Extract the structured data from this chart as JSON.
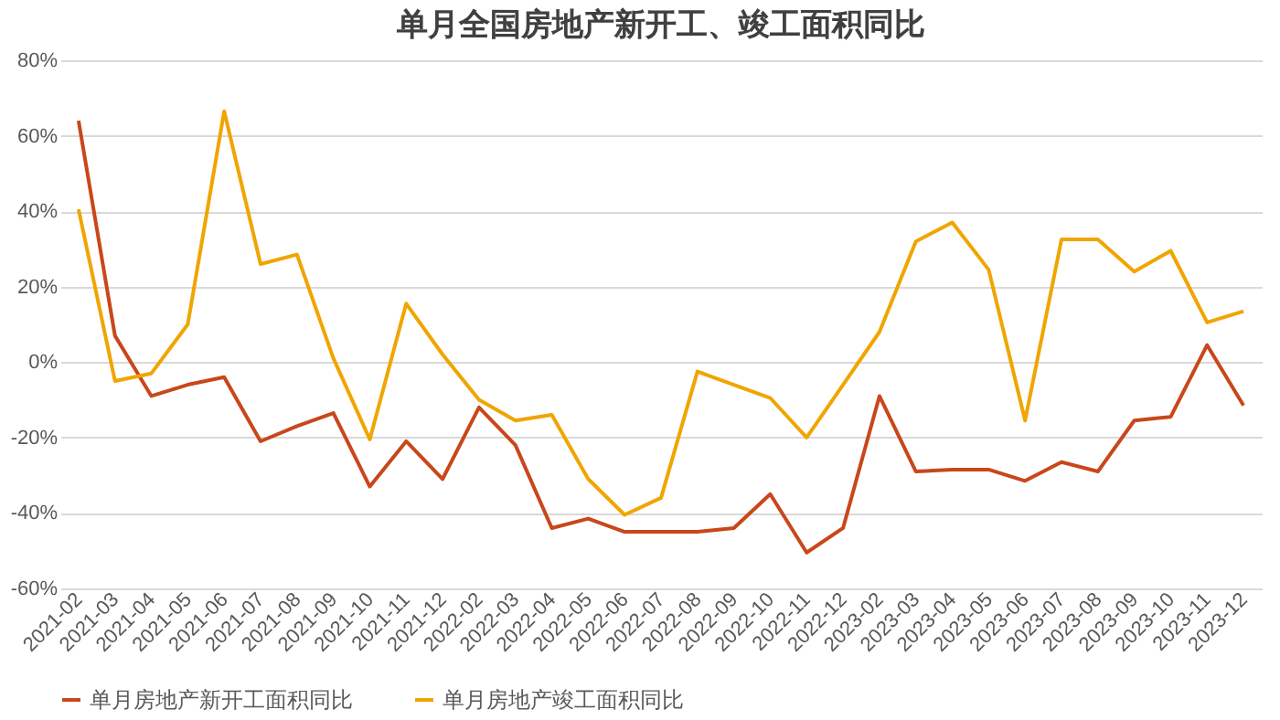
{
  "chart_data": {
    "type": "line",
    "title": "单月全国房地产新开工、竣工面积同比",
    "categories": [
      "2021-02",
      "2021-03",
      "2021-04",
      "2021-05",
      "2021-06",
      "2021-07",
      "2021-08",
      "2021-09",
      "2021-10",
      "2021-11",
      "2021-12",
      "2022-02",
      "2022-03",
      "2022-04",
      "2022-05",
      "2022-06",
      "2022-07",
      "2022-08",
      "2022-09",
      "2022-10",
      "2022-11",
      "2022-12",
      "2023-02",
      "2023-03",
      "2023-04",
      "2023-05",
      "2023-06",
      "2023-07",
      "2023-08",
      "2023-09",
      "2023-10",
      "2023-11",
      "2023-12"
    ],
    "series": [
      {
        "name": "单月房地产新开工面积同比",
        "color": "#c8471b",
        "values": [
          64,
          7,
          -9,
          -6,
          -4,
          -21,
          -17,
          -13.5,
          -33,
          -21,
          -31,
          -12,
          -22,
          -44,
          -41.5,
          -45,
          -45,
          -45,
          -44,
          -35,
          -50.5,
          -44,
          -9,
          -29,
          -28.5,
          -28.5,
          -31.5,
          -26.5,
          -29,
          -15.5,
          -14.5,
          4.5,
          -11.5
        ]
      },
      {
        "name": "单月房地产竣工面积同比",
        "color": "#f0a500",
        "values": [
          40.5,
          -5,
          -3,
          10,
          66.5,
          26,
          28.5,
          1,
          -20.5,
          15.5,
          2,
          -10,
          -15.5,
          -14,
          -31,
          -40.5,
          -36,
          -2.5,
          -6,
          -9.5,
          -20,
          -6,
          8,
          32,
          37,
          24.5,
          -15.5,
          32.5,
          32.5,
          24,
          29.5,
          10.5,
          13.5
        ]
      }
    ],
    "ylim": [
      -60,
      80
    ],
    "yticks": [
      {
        "value": -60,
        "label": "-60%"
      },
      {
        "value": -40,
        "label": "-40%"
      },
      {
        "value": -20,
        "label": "-20%"
      },
      {
        "value": 0,
        "label": "0%"
      },
      {
        "value": 20,
        "label": "20%"
      },
      {
        "value": 40,
        "label": "40%"
      },
      {
        "value": 60,
        "label": "60%"
      },
      {
        "value": 80,
        "label": "80%"
      }
    ],
    "grid": "y",
    "legend": "bottom",
    "marker": "none",
    "line_style": "solid"
  }
}
